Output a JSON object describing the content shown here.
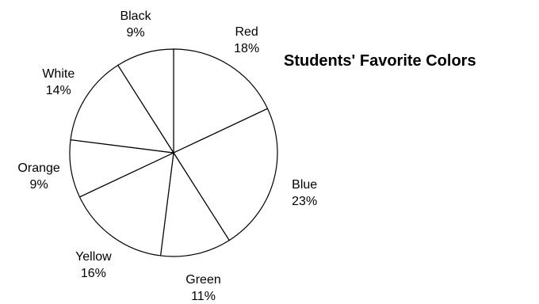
{
  "chart_data": {
    "type": "pie",
    "title": "Students' Favorite Colors",
    "start_angle_deg": 0,
    "direction": "clockwise",
    "slices": [
      {
        "label": "Red",
        "value": 18,
        "display": "18%"
      },
      {
        "label": "Blue",
        "value": 23,
        "display": "23%"
      },
      {
        "label": "Green",
        "value": 11,
        "display": "11%"
      },
      {
        "label": "Yellow",
        "value": 16,
        "display": "16%"
      },
      {
        "label": "Orange",
        "value": 9,
        "display": "9%"
      },
      {
        "label": "White",
        "value": 14,
        "display": "14%"
      },
      {
        "label": "Black",
        "value": 9,
        "display": "9%"
      }
    ],
    "colors": {
      "fill": "#ffffff",
      "stroke": "#000000",
      "text": "#000000"
    },
    "legend": "none",
    "grid": false
  }
}
